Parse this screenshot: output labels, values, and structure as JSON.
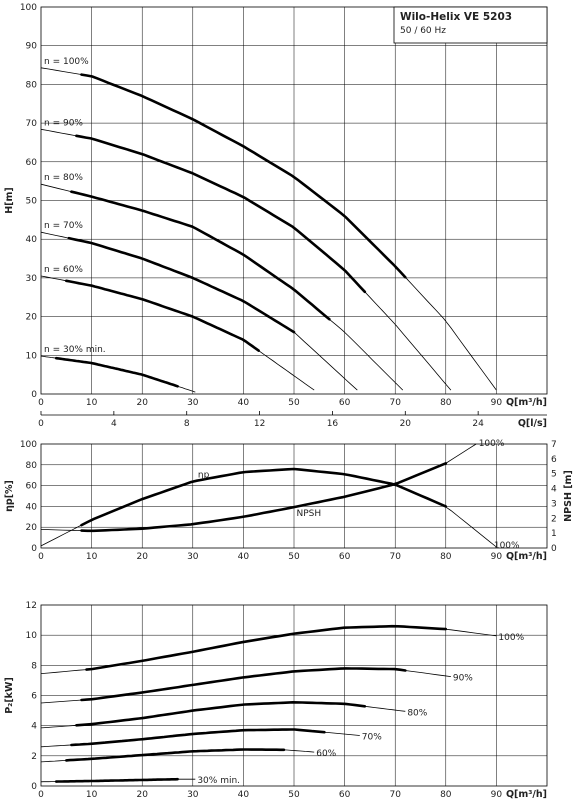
{
  "title": {
    "product": "Wilo-Helix VE 5203",
    "frequency": "50 / 60 Hz"
  },
  "chart_data": [
    {
      "type": "line",
      "panel": "head",
      "xlabel": "Q[m³/h]",
      "x2label": "Q[l/s]",
      "ylabel": "H[m]",
      "xlim": [
        0,
        100
      ],
      "ylim": [
        0,
        100
      ],
      "x2lim": [
        0,
        27.78
      ],
      "xticks": [
        0,
        10,
        20,
        30,
        40,
        50,
        60,
        70,
        80,
        90
      ],
      "x2ticks": [
        0,
        4,
        8,
        12,
        16,
        20,
        24
      ],
      "yticks": [
        0,
        10,
        20,
        30,
        40,
        50,
        60,
        70,
        80,
        90,
        100
      ],
      "grid": true,
      "series": [
        {
          "name": "n = 100%",
          "x": [
            0,
            10,
            20,
            30,
            40,
            50,
            60,
            70,
            80,
            90
          ],
          "y": [
            84.3,
            82.1,
            77.0,
            71.0,
            64.0,
            56.1,
            46.0,
            33.0,
            18.9,
            1.0
          ],
          "thick_range": [
            8,
            72
          ]
        },
        {
          "name": "n = 90%",
          "x": [
            0,
            10,
            20,
            30,
            40,
            50,
            60,
            70,
            81
          ],
          "y": [
            68.4,
            66.0,
            62.0,
            57.0,
            50.9,
            43.0,
            32.0,
            18.0,
            1.0
          ],
          "thick_range": [
            7,
            64
          ]
        },
        {
          "name": "n = 80%",
          "x": [
            0,
            10,
            20,
            30,
            40,
            50,
            60,
            71.5
          ],
          "y": [
            54.2,
            51.0,
            47.4,
            43.2,
            36.0,
            27.0,
            16.0,
            1.0
          ],
          "thick_range": [
            6,
            57
          ]
        },
        {
          "name": "n = 70%",
          "x": [
            0,
            10,
            20,
            30,
            40,
            50,
            62.5
          ],
          "y": [
            41.8,
            39.0,
            35.0,
            30.0,
            24.0,
            16.0,
            1.0
          ],
          "thick_range": [
            5.5,
            50
          ]
        },
        {
          "name": "n = 60%",
          "x": [
            0,
            10,
            20,
            30,
            40,
            54
          ],
          "y": [
            30.5,
            28.0,
            24.5,
            20.0,
            14.0,
            1.0
          ],
          "thick_range": [
            5,
            43
          ]
        },
        {
          "name": "n = 30% min.",
          "x": [
            0,
            10,
            20,
            27,
            30.5
          ],
          "y": [
            9.8,
            8.0,
            5.0,
            2.0,
            0.5
          ],
          "thick_range": [
            3,
            27
          ]
        }
      ]
    },
    {
      "type": "line",
      "panel": "efficiency-npsh",
      "xlabel": "Q[m³/h]",
      "ylabel": "ηp[%]",
      "y2label": "NPSH [m]",
      "xlim": [
        0,
        100
      ],
      "ylim": [
        0,
        100
      ],
      "y2lim": [
        0,
        7
      ],
      "xticks": [
        0,
        10,
        20,
        30,
        40,
        50,
        60,
        70,
        80,
        90
      ],
      "yticks": [
        0,
        20,
        40,
        60,
        80,
        100
      ],
      "y2ticks": [
        0,
        1,
        2,
        3,
        4,
        5,
        6,
        7
      ],
      "grid": true,
      "series": [
        {
          "name": "ηp",
          "label": "ηp",
          "end_label": "100%",
          "axis": "left",
          "x": [
            0,
            10,
            20,
            30,
            40,
            50,
            60,
            70,
            80,
            90
          ],
          "y": [
            2,
            27,
            47,
            64,
            73,
            76,
            71,
            61,
            40,
            1
          ],
          "thick_range": [
            8,
            80
          ]
        },
        {
          "name": "NPSH",
          "label": "NPSH",
          "end_label": "100%",
          "axis": "right",
          "x": [
            0,
            10,
            20,
            30,
            40,
            50,
            60,
            70,
            80,
            86
          ],
          "y": [
            1.25,
            1.15,
            1.3,
            1.6,
            2.1,
            2.75,
            3.45,
            4.3,
            5.7,
            7.0
          ],
          "thick_range": [
            8,
            80
          ]
        }
      ]
    },
    {
      "type": "line",
      "panel": "power",
      "xlabel": "Q[m³/h]",
      "ylabel": "P₂[kW]",
      "xlim": [
        0,
        100
      ],
      "ylim": [
        0,
        12
      ],
      "xticks": [
        0,
        10,
        20,
        30,
        40,
        50,
        60,
        70,
        80,
        90
      ],
      "yticks": [
        0,
        2,
        4,
        6,
        8,
        10,
        12
      ],
      "grid": true,
      "series": [
        {
          "name": "100%",
          "label": "100%",
          "x": [
            0,
            10,
            20,
            30,
            40,
            50,
            60,
            70,
            80,
            90
          ],
          "y": [
            7.45,
            7.75,
            8.3,
            8.9,
            9.55,
            10.1,
            10.5,
            10.6,
            10.4,
            9.95
          ],
          "thick_range": [
            9,
            80
          ]
        },
        {
          "name": "90%",
          "label": "90%",
          "x": [
            0,
            10,
            20,
            30,
            40,
            50,
            60,
            70,
            81
          ],
          "y": [
            5.5,
            5.75,
            6.2,
            6.7,
            7.2,
            7.6,
            7.8,
            7.75,
            7.25
          ],
          "thick_range": [
            8,
            72
          ]
        },
        {
          "name": "80%",
          "label": "80%",
          "x": [
            0,
            10,
            20,
            30,
            40,
            50,
            60,
            72
          ],
          "y": [
            3.85,
            4.1,
            4.5,
            5.0,
            5.4,
            5.55,
            5.45,
            4.95
          ],
          "thick_range": [
            7,
            64
          ]
        },
        {
          "name": "70%",
          "label": "70%",
          "x": [
            0,
            10,
            20,
            30,
            40,
            50,
            63
          ],
          "y": [
            2.6,
            2.8,
            3.1,
            3.45,
            3.7,
            3.75,
            3.35
          ],
          "thick_range": [
            6,
            56
          ]
        },
        {
          "name": "60%",
          "label": "60%",
          "x": [
            0,
            10,
            20,
            30,
            40,
            48,
            54
          ],
          "y": [
            1.6,
            1.8,
            2.05,
            2.3,
            2.42,
            2.4,
            2.25
          ],
          "thick_range": [
            5,
            48
          ]
        },
        {
          "name": "30% min.",
          "label": "30% min.",
          "x": [
            0,
            10,
            20,
            27,
            30.5
          ],
          "y": [
            0.28,
            0.33,
            0.4,
            0.45,
            0.45
          ],
          "thick_range": [
            3,
            27
          ]
        }
      ]
    }
  ]
}
